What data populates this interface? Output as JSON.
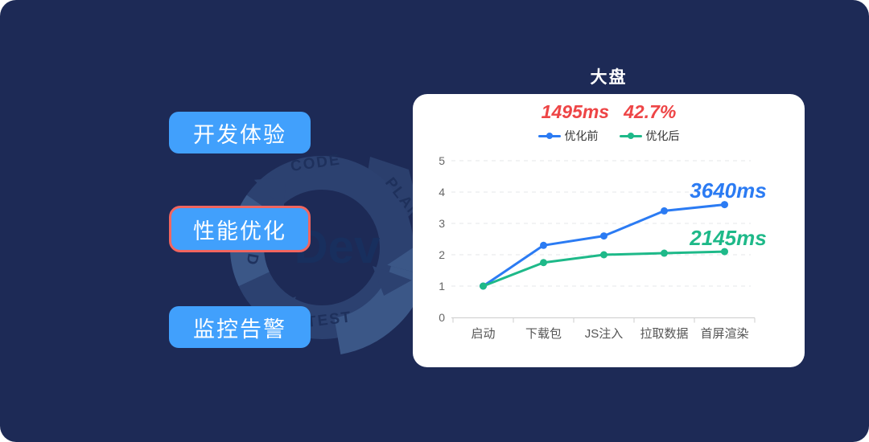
{
  "page": {
    "background_color": "#1d2a56",
    "card_color": "#ffffff"
  },
  "nav": {
    "button_color": "#41a0fc",
    "active_border_color": "#f1655f",
    "items": [
      {
        "label": "开发体验",
        "active": false
      },
      {
        "label": "性能优化",
        "active": true
      },
      {
        "label": "监控告警",
        "active": false
      }
    ]
  },
  "devops_graphic": {
    "center_label": "Dev",
    "stage_labels": [
      "CODE",
      "PLAN",
      "TEST",
      "BUILD"
    ]
  },
  "stat": {
    "primary": "1495ms",
    "secondary": "42.7%",
    "color": "#ee4546"
  },
  "chart_data": {
    "type": "line",
    "title": "大盘",
    "categories": [
      "启动",
      "下载包",
      "JS注入",
      "拉取数据",
      "首屏渲染"
    ],
    "series": [
      {
        "name": "优化前",
        "color": "#2b7bf3",
        "values": [
          1,
          2.3,
          2.6,
          3.4,
          3.6
        ],
        "end_label": "3640ms"
      },
      {
        "name": "优化后",
        "color": "#1eb989",
        "values": [
          1,
          1.75,
          2.0,
          2.05,
          2.1
        ],
        "end_label": "2145ms"
      }
    ],
    "ylim": [
      0,
      5
    ],
    "yticks": [
      0,
      1,
      2,
      3,
      4,
      5
    ],
    "grid": "dashed-horizontal",
    "legend_position": "top",
    "xlabel": "",
    "ylabel": ""
  }
}
